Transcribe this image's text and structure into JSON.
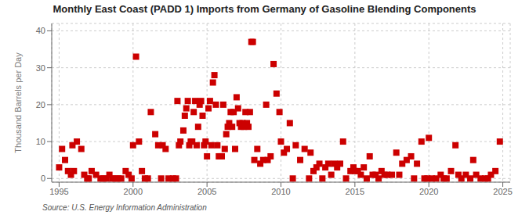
{
  "chart_data": {
    "type": "scatter",
    "title": "Monthly East Coast (PADD 1) Imports from Germany of Gasoline Blending Components",
    "ylabel": "Thousand Barrels per Day",
    "source": "Source: U.S. Energy Information Administration",
    "color": "#cc0000",
    "marker": "square",
    "grid": true,
    "xlim": [
      1994.5,
      2025.5
    ],
    "ylim": [
      -1,
      42
    ],
    "xticks": [
      1995,
      2000,
      2005,
      2010,
      2015,
      2020,
      2025
    ],
    "yticks": [
      0,
      10,
      20,
      30,
      40
    ],
    "x": [
      1995.0,
      1995.2,
      1995.4,
      1995.6,
      1995.8,
      1995.9,
      1996.0,
      1996.2,
      1996.5,
      1996.7,
      1996.9,
      1997.0,
      1997.2,
      1997.5,
      1997.8,
      1998.0,
      1998.2,
      1998.4,
      1998.6,
      1998.8,
      1999.0,
      1999.2,
      1999.5,
      1999.7,
      1999.9,
      2000.0,
      2000.2,
      2000.4,
      2000.6,
      2000.8,
      2001.0,
      2001.2,
      2001.5,
      2001.7,
      2001.9,
      2002.0,
      2002.2,
      2002.4,
      2002.7,
      2002.9,
      2003.0,
      2003.1,
      2003.2,
      2003.4,
      2003.5,
      2003.6,
      2003.7,
      2003.8,
      2003.9,
      2004.0,
      2004.1,
      2004.2,
      2004.3,
      2004.4,
      2004.5,
      2004.6,
      2004.7,
      2004.8,
      2004.9,
      2005.0,
      2005.1,
      2005.2,
      2005.3,
      2005.4,
      2005.5,
      2005.6,
      2005.7,
      2005.8,
      2005.9,
      2006.0,
      2006.1,
      2006.2,
      2006.3,
      2006.4,
      2006.5,
      2006.6,
      2006.7,
      2006.8,
      2006.9,
      2007.0,
      2007.1,
      2007.2,
      2007.3,
      2007.4,
      2007.5,
      2007.6,
      2007.7,
      2007.8,
      2007.9,
      2008.0,
      2008.1,
      2008.2,
      2008.4,
      2008.6,
      2008.8,
      2009.0,
      2009.1,
      2009.3,
      2009.5,
      2009.7,
      2009.9,
      2010.0,
      2010.2,
      2010.4,
      2010.6,
      2010.8,
      2011.0,
      2011.3,
      2011.6,
      2011.9,
      2012.0,
      2012.2,
      2012.4,
      2012.6,
      2012.8,
      2013.0,
      2013.2,
      2013.4,
      2013.6,
      2013.8,
      2014.0,
      2014.2,
      2014.4,
      2014.7,
      2014.9,
      2015.0,
      2015.2,
      2015.4,
      2015.6,
      2015.8,
      2016.0,
      2016.2,
      2016.4,
      2016.6,
      2016.8,
      2017.0,
      2017.2,
      2017.5,
      2017.8,
      2018.0,
      2018.2,
      2018.5,
      2018.8,
      2019.0,
      2019.2,
      2019.5,
      2019.7,
      2019.9,
      2020.0,
      2020.2,
      2020.5,
      2020.8,
      2021.0,
      2021.2,
      2021.5,
      2021.8,
      2022.0,
      2022.2,
      2022.5,
      2022.8,
      2023.0,
      2023.2,
      2023.5,
      2023.8,
      2024.0,
      2024.2,
      2024.5,
      2024.8
    ],
    "values": [
      3,
      8,
      5,
      2,
      1,
      9,
      2,
      10,
      8,
      1,
      0,
      0,
      2,
      1,
      0,
      0,
      0,
      1,
      0,
      0,
      0,
      0,
      2,
      1,
      0,
      9,
      33,
      10,
      2,
      0,
      0,
      18,
      12,
      9,
      0,
      9,
      8,
      0,
      0,
      0,
      21,
      9,
      10,
      13,
      17,
      19,
      21,
      9,
      10,
      10,
      18,
      21,
      9,
      14,
      20,
      21,
      17,
      9,
      10,
      6,
      19,
      21,
      9,
      26,
      28,
      20,
      9,
      6,
      6,
      6,
      20,
      8,
      12,
      14,
      15,
      18,
      14,
      18,
      8,
      22,
      19,
      15,
      14,
      15,
      14,
      18,
      15,
      14,
      18,
      37,
      37,
      5,
      8,
      4,
      5,
      20,
      5,
      6,
      31,
      23,
      18,
      10,
      7,
      8,
      15,
      0,
      9,
      5,
      8,
      0,
      7,
      2,
      3,
      4,
      0,
      3,
      4,
      1,
      4,
      3,
      4,
      10,
      0,
      2,
      3,
      2,
      2,
      1,
      3,
      0,
      6,
      1,
      1,
      0,
      2,
      1,
      1,
      1,
      7,
      1,
      4,
      5,
      6,
      0,
      4,
      10,
      0,
      0,
      11,
      0,
      0,
      1,
      0,
      0,
      2,
      9,
      1,
      0,
      1,
      0,
      5,
      1,
      0,
      0,
      0,
      1,
      2,
      10
    ]
  }
}
